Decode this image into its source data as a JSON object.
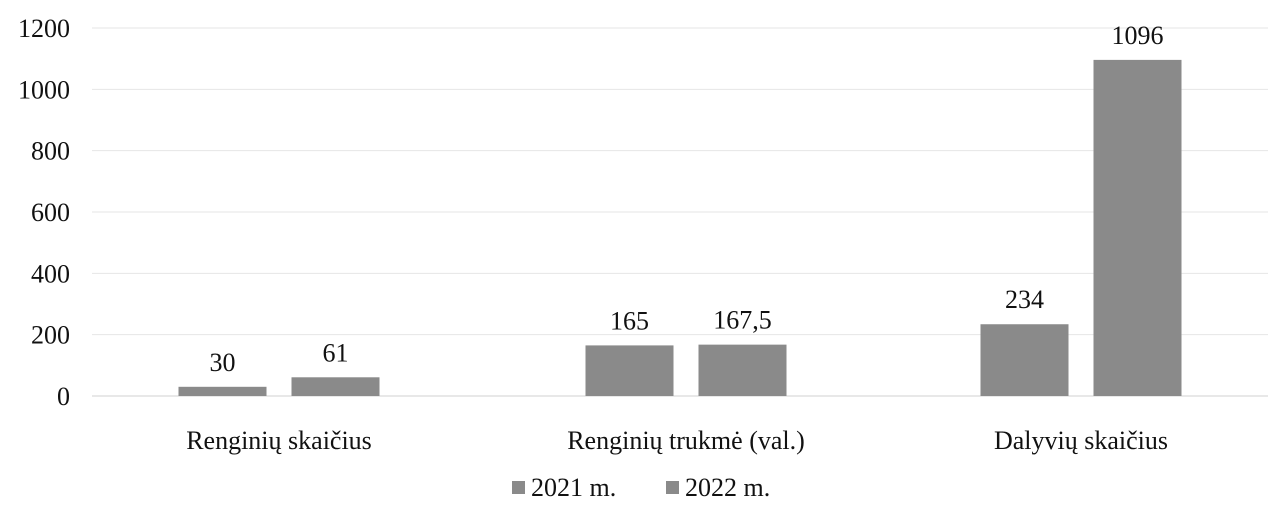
{
  "chart_data": {
    "type": "bar",
    "title": "",
    "xlabel": "",
    "ylabel": "",
    "categories": [
      "Renginių skaičius",
      "Renginių trukmė (val.)",
      "Dalyvių skaičius"
    ],
    "series": [
      {
        "name": "2021 m.",
        "values": [
          30,
          165,
          234
        ],
        "labels": [
          "30",
          "165",
          "234"
        ],
        "color": "#8a8a8a"
      },
      {
        "name": "2022 m.",
        "values": [
          61,
          167.5,
          1096
        ],
        "labels": [
          "61",
          "167,5",
          "1096"
        ],
        "color": "#8a8a8a"
      }
    ],
    "ylim": [
      0,
      1200
    ],
    "yticks": [
      0,
      200,
      400,
      600,
      800,
      1000,
      1200
    ],
    "ytick_labels": [
      "0",
      "200",
      "400",
      "600",
      "800",
      "1000",
      "1200"
    ],
    "grid": true,
    "legend_position": "bottom",
    "colors": {
      "grid": "#e6e6e6",
      "text": "#111111",
      "axis": "#d0d0d0"
    }
  }
}
